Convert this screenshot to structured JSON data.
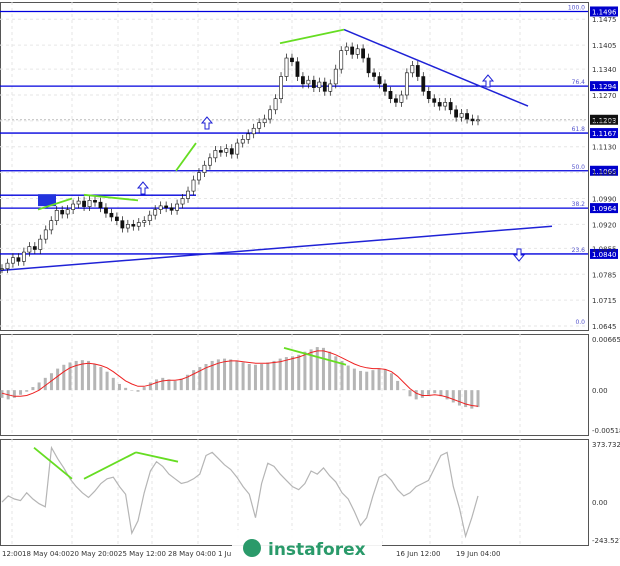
{
  "chart_data": [
    {
      "type": "candlestick",
      "panel": "main",
      "y_axis_ticks": [
        "1.1475",
        "1.1405",
        "1.1340",
        "1.1270",
        "1.1200",
        "1.1130",
        "1.1060",
        "1.0990",
        "1.0920",
        "1.0855",
        "1.0785",
        "1.0715",
        "1.0645"
      ],
      "ylim": [
        1.0645,
        1.15
      ],
      "price_levels": [
        {
          "label": "1.1496",
          "value": 1.1496,
          "fib_label": "100.0"
        },
        {
          "label": "1.1294",
          "value": 1.1294,
          "fib_label": "76.4"
        },
        {
          "label": "1.1167",
          "value": 1.1167,
          "fib_label": "61.8"
        },
        {
          "label": "1.1065",
          "value": 1.1065,
          "fib_label": "50.0"
        },
        {
          "label": "1.0964",
          "value": 1.0964,
          "fib_label": "38.2"
        },
        {
          "label": "1.0840",
          "value": 1.084,
          "fib_label": "23.6"
        },
        {
          "label": "",
          "value": 1.0645,
          "fib_label": "0.0"
        }
      ],
      "current_price": "1.1203",
      "close_series": [
        1.08,
        1.0815,
        1.083,
        1.082,
        1.0845,
        1.086,
        1.0852,
        1.088,
        1.0905,
        1.093,
        1.0958,
        1.0948,
        1.096,
        1.0975,
        1.0983,
        1.0968,
        1.0985,
        1.098,
        1.0965,
        1.095,
        1.094,
        1.093,
        1.091,
        1.092,
        1.0915,
        1.0925,
        1.093,
        1.0945,
        1.096,
        1.097,
        1.0965,
        1.0958,
        1.0975,
        1.099,
        1.101,
        1.104,
        1.106,
        1.108,
        1.11,
        1.112,
        1.1115,
        1.1125,
        1.111,
        1.114,
        1.115,
        1.1165,
        1.118,
        1.1195,
        1.1205,
        1.123,
        1.126,
        1.132,
        1.137,
        1.136,
        1.132,
        1.13,
        1.131,
        1.129,
        1.1305,
        1.128,
        1.13,
        1.134,
        1.139,
        1.14,
        1.138,
        1.1395,
        1.137,
        1.133,
        1.132,
        1.13,
        1.128,
        1.126,
        1.125,
        1.127,
        1.133,
        1.135,
        1.132,
        1.128,
        1.126,
        1.125,
        1.124,
        1.125,
        1.123,
        1.121,
        1.122,
        1.1205,
        1.12,
        1.1203
      ]
    },
    {
      "type": "bar",
      "panel": "macd",
      "y_axis_ticks": [
        "0.00665",
        "0.00",
        "-0.00518"
      ],
      "ylim": [
        -0.00518,
        0.00665
      ],
      "histogram": [
        -0.001,
        -0.0012,
        -0.001,
        -0.0006,
        -0.0002,
        0.0004,
        0.001,
        0.0016,
        0.0022,
        0.0028,
        0.0033,
        0.0036,
        0.0038,
        0.0039,
        0.0038,
        0.0034,
        0.003,
        0.0024,
        0.0016,
        0.0008,
        0.0003,
        0.0,
        -0.0002,
        0.0004,
        0.001,
        0.0014,
        0.0016,
        0.0014,
        0.0012,
        0.0015,
        0.002,
        0.0026,
        0.003,
        0.0034,
        0.0038,
        0.004,
        0.0041,
        0.004,
        0.0038,
        0.0036,
        0.0034,
        0.0033,
        0.0034,
        0.0036,
        0.0038,
        0.0041,
        0.0043,
        0.0044,
        0.0046,
        0.005,
        0.0053,
        0.0056,
        0.0055,
        0.005,
        0.0044,
        0.0038,
        0.0032,
        0.0028,
        0.0025,
        0.0024,
        0.0026,
        0.0028,
        0.0027,
        0.0022,
        0.0012,
        0.0001,
        -0.0008,
        -0.0012,
        -0.001,
        -0.0006,
        -0.0004,
        -0.0008,
        -0.0012,
        -0.0016,
        -0.002,
        -0.0022,
        -0.0024,
        -0.0022
      ],
      "signal_line": [
        -0.0004,
        -0.0006,
        -0.0008,
        -0.0008,
        -0.0007,
        -0.0004,
        0.0,
        0.0006,
        0.0012,
        0.0018,
        0.0024,
        0.0029,
        0.0032,
        0.0034,
        0.0035,
        0.0034,
        0.0032,
        0.0029,
        0.0024,
        0.0018,
        0.0012,
        0.0008,
        0.0005,
        0.0005,
        0.0007,
        0.001,
        0.0012,
        0.0013,
        0.0013,
        0.0014,
        0.0017,
        0.0021,
        0.0025,
        0.0029,
        0.0032,
        0.0035,
        0.0037,
        0.0038,
        0.0038,
        0.0037,
        0.0036,
        0.0035,
        0.0035,
        0.0035,
        0.0036,
        0.0037,
        0.0039,
        0.0041,
        0.0043,
        0.0046,
        0.0049,
        0.0051,
        0.0051,
        0.0049,
        0.0046,
        0.0042,
        0.0038,
        0.0034,
        0.0031,
        0.0029,
        0.0028,
        0.0028,
        0.0027,
        0.0024,
        0.0018,
        0.001,
        0.0002,
        -0.0004,
        -0.0007,
        -0.0007,
        -0.0006,
        -0.0007,
        -0.0009,
        -0.0012,
        -0.0015,
        -0.0018,
        -0.002,
        -0.0021
      ]
    },
    {
      "type": "line",
      "panel": "oscillator",
      "y_axis_ticks": [
        "373.7321",
        "0.00",
        "-243.5270"
      ],
      "ylim": [
        -243.527,
        373.7321
      ],
      "values": [
        0,
        40,
        20,
        10,
        60,
        20,
        -10,
        -30,
        350,
        280,
        220,
        150,
        100,
        60,
        30,
        70,
        120,
        150,
        160,
        100,
        50,
        -200,
        -120,
        60,
        200,
        260,
        230,
        180,
        150,
        120,
        130,
        150,
        180,
        300,
        320,
        280,
        240,
        210,
        160,
        100,
        50,
        -100,
        120,
        250,
        230,
        180,
        140,
        100,
        80,
        120,
        200,
        180,
        220,
        170,
        130,
        60,
        20,
        -60,
        -150,
        -100,
        40,
        160,
        180,
        140,
        80,
        40,
        60,
        100,
        120,
        140,
        220,
        300,
        320,
        100,
        -40,
        -220,
        -100,
        40
      ]
    }
  ],
  "x_axis_labels": [
    "12:00",
    "18 May 04:00",
    "20 May 20:00",
    "25 May 12:00",
    "28 May 04:00",
    "1 Ju",
    "16 Jun 12:00",
    "19 Jun 04:00"
  ],
  "watermark": "instaforex",
  "colors": {
    "level_line": "#0000dd",
    "trend_line": "#1f22d6",
    "divergence": "#66dd22",
    "signal_line": "#ee2222",
    "histogram": "#b5b5b5",
    "oscillator": "#b5b5b5",
    "grid": "#e6e6e6",
    "label_bg": "#0000cc",
    "axis_text": "#333333"
  }
}
